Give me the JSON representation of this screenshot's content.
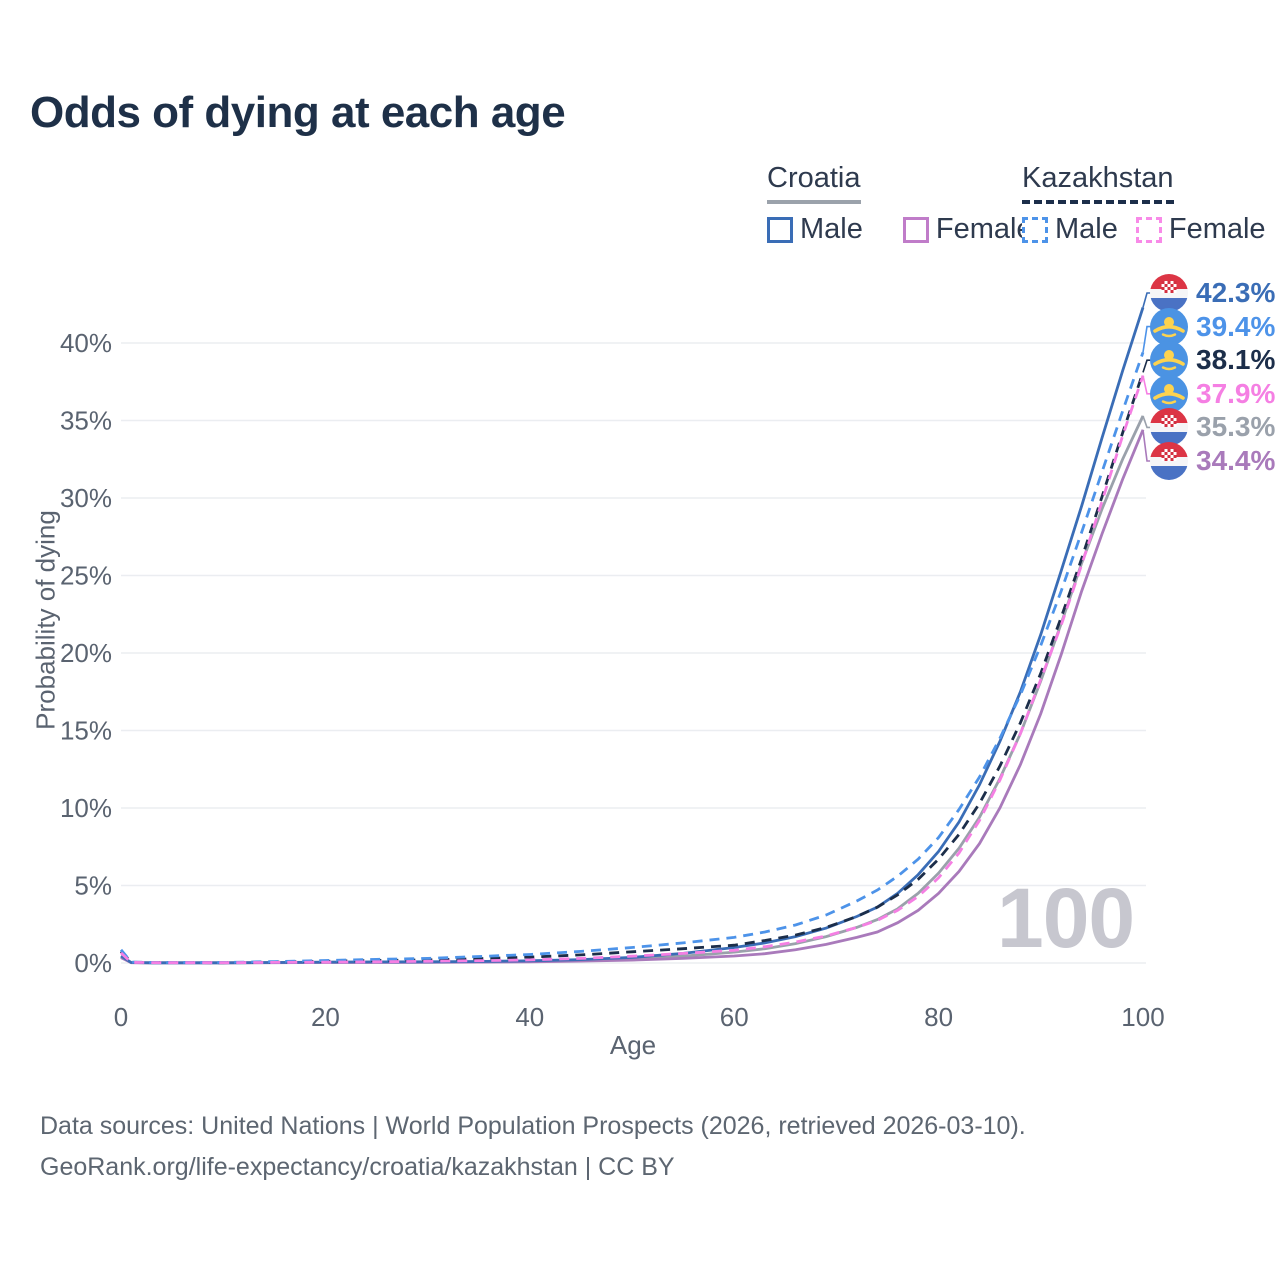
{
  "title": "Odds of dying at each age",
  "legend": {
    "groups": [
      {
        "country": "Croatia",
        "line_style": "solid",
        "underline_color": "#9ba2ab",
        "items": [
          {
            "label": "Male",
            "swatch_color": "#3a6db6"
          },
          {
            "label": "Female",
            "swatch_color": "#c07cc9"
          }
        ]
      },
      {
        "country": "Kazakhstan",
        "line_style": "dashed",
        "underline_color": "#1c2e4a",
        "items": [
          {
            "label": "Male",
            "swatch_color": "#4d93e9"
          },
          {
            "label": "Female",
            "swatch_color": "#f88ae8"
          }
        ]
      }
    ]
  },
  "watermark": "100",
  "footer": {
    "line1": "Data sources: United Nations | World Population Prospects (2026, retrieved 2026-03-10).",
    "line2": "GeoRank.org/life-expectancy/croatia/kazakhstan | CC BY"
  },
  "chart_data": {
    "type": "line",
    "title": "Odds of dying at each age",
    "xlabel": "Age",
    "ylabel": "Probability of dying",
    "xlim": [
      0,
      100
    ],
    "ylim": [
      0,
      45
    ],
    "x_ticks": [
      0,
      20,
      40,
      60,
      80,
      100
    ],
    "y_ticks": [
      0,
      5,
      10,
      15,
      20,
      25,
      30,
      35,
      40
    ],
    "y_tick_suffix": "%",
    "grid": "horizontal-only",
    "legend_position": "top-right",
    "ages": [
      0,
      1,
      3,
      5,
      10,
      15,
      20,
      25,
      30,
      35,
      40,
      45,
      50,
      55,
      60,
      63,
      66,
      69,
      72,
      74,
      76,
      78,
      80,
      82,
      84,
      86,
      88,
      90,
      92,
      94,
      96,
      98,
      100
    ],
    "series": [
      {
        "id": "croatia-total",
        "name": "Croatia - Total",
        "country": "Croatia",
        "sex": "Total",
        "color": "#9aa1ab",
        "dash": "solid",
        "flag": "croatia",
        "end_label": "35.3%",
        "values": [
          0.4,
          0.025,
          0.012,
          0.01,
          0.01,
          0.025,
          0.045,
          0.05,
          0.06,
          0.08,
          0.11,
          0.17,
          0.27,
          0.44,
          0.7,
          0.92,
          1.25,
          1.7,
          2.3,
          2.8,
          3.5,
          4.5,
          5.8,
          7.4,
          9.4,
          11.9,
          14.8,
          18.2,
          21.9,
          25.8,
          29.3,
          32.5,
          35.3
        ]
      },
      {
        "id": "croatia-female",
        "name": "Croatia - Female",
        "country": "Croatia",
        "sex": "Female",
        "color": "#a97abb",
        "dash": "solid",
        "flag": "croatia",
        "end_label": "34.4%",
        "values": [
          0.35,
          0.02,
          0.01,
          0.01,
          0.01,
          0.02,
          0.03,
          0.035,
          0.045,
          0.06,
          0.08,
          0.12,
          0.19,
          0.3,
          0.45,
          0.6,
          0.85,
          1.2,
          1.65,
          2.0,
          2.6,
          3.4,
          4.5,
          5.9,
          7.7,
          10.0,
          12.8,
          16.1,
          19.9,
          24.0,
          27.7,
          31.2,
          34.4
        ]
      },
      {
        "id": "croatia-male",
        "name": "Croatia - Male",
        "country": "Croatia",
        "sex": "Male",
        "color": "#3a6db6",
        "dash": "solid",
        "flag": "croatia",
        "end_label": "42.3%",
        "values": [
          0.45,
          0.03,
          0.015,
          0.012,
          0.01,
          0.03,
          0.06,
          0.07,
          0.08,
          0.1,
          0.14,
          0.22,
          0.36,
          0.62,
          1.0,
          1.3,
          1.7,
          2.25,
          3.0,
          3.6,
          4.5,
          5.7,
          7.2,
          9.1,
          11.5,
          14.3,
          17.5,
          21.2,
          25.3,
          29.5,
          33.9,
          38.2,
          42.3
        ]
      },
      {
        "id": "kazakhstan-total",
        "name": "Kazakhstan - Total",
        "country": "Kazakhstan",
        "sex": "Total",
        "color": "#1c2e4a",
        "dash": "dashed",
        "flag": "kazakhstan",
        "end_label": "38.1%",
        "values": [
          0.75,
          0.05,
          0.03,
          0.025,
          0.02,
          0.06,
          0.11,
          0.16,
          0.2,
          0.28,
          0.38,
          0.52,
          0.72,
          0.92,
          1.15,
          1.45,
          1.8,
          2.3,
          3.0,
          3.6,
          4.4,
          5.4,
          6.7,
          8.3,
          10.3,
          12.7,
          15.5,
          18.7,
          22.3,
          26.1,
          30.1,
          34.2,
          38.1
        ]
      },
      {
        "id": "kazakhstan-male",
        "name": "Kazakhstan - Male",
        "country": "Kazakhstan",
        "sex": "Male",
        "color": "#4d93e9",
        "dash": "dashed",
        "flag": "kazakhstan",
        "end_label": "39.4%",
        "values": [
          0.85,
          0.06,
          0.035,
          0.03,
          0.03,
          0.09,
          0.16,
          0.23,
          0.3,
          0.42,
          0.55,
          0.75,
          1.0,
          1.3,
          1.65,
          2.0,
          2.45,
          3.1,
          4.0,
          4.7,
          5.6,
          6.7,
          8.1,
          9.9,
          12.0,
          14.5,
          17.3,
          20.5,
          24.0,
          27.8,
          31.7,
          35.6,
          39.4
        ]
      },
      {
        "id": "kazakhstan-female",
        "name": "Kazakhstan - Female",
        "country": "Kazakhstan",
        "sex": "Female",
        "color": "#f57fe3",
        "dash": "dashed",
        "flag": "kazakhstan",
        "end_label": "37.9%",
        "values": [
          0.65,
          0.04,
          0.025,
          0.02,
          0.02,
          0.04,
          0.06,
          0.08,
          0.11,
          0.15,
          0.2,
          0.3,
          0.44,
          0.62,
          0.82,
          1.05,
          1.35,
          1.75,
          2.3,
          2.75,
          3.4,
          4.3,
          5.5,
          7.1,
          9.2,
          11.8,
          14.8,
          18.3,
          21.8,
          25.7,
          29.8,
          34.0,
          37.9
        ]
      }
    ]
  }
}
